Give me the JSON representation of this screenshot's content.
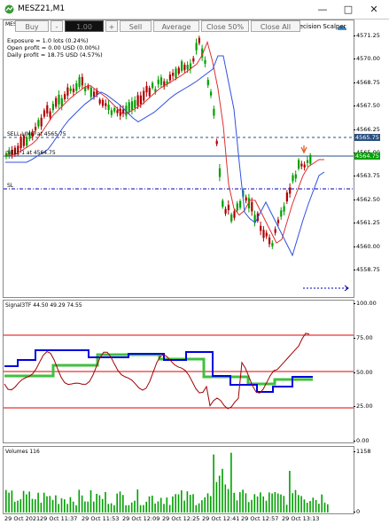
{
  "window": {
    "title": "MESZ21,M1"
  },
  "toolbar": {
    "buy": "Buy",
    "minus": "-",
    "lots": "1.00",
    "plus": "+",
    "sell": "Sell",
    "average": "Average",
    "close50": "Close 50%",
    "closeall": "Close All"
  },
  "info": {
    "exposure": "Exposure = 1.0 lots (0.24%)",
    "open_profit": "Open profit = 0.00 USD (0.00%)",
    "daily_profit": "Daily profit = 18.75 USD (4.57%)"
  },
  "price_chart": {
    "symbol_short": "MES",
    "expert": "recision Scalper",
    "sell_limit_label": "SELL LIMIT  at 4565.75",
    "sell_label": "SELL 1 at 4564.75",
    "sl_label": "SL",
    "current_price": "4564.75",
    "y_ticks": [
      "4571.25",
      "4570.00",
      "4568.75",
      "4567.50",
      "4566.25",
      "4565.00",
      "4563.75",
      "4562.50",
      "4561.25",
      "4560.00",
      "4558.75"
    ],
    "colors": {
      "up": "#00a000",
      "down": "#b00000",
      "ma_red": "#e03030",
      "ma_blue": "#3050e0",
      "current": "#00a000",
      "sell": "#2a5080",
      "sl": "#0000b0"
    }
  },
  "signal_panel": {
    "title": "Signal3TF 44.50 49.29 74.55",
    "y_ticks": [
      "100.00",
      "75.00",
      "50.00",
      "25.00",
      "0.00"
    ],
    "colors": {
      "blue": "#0000e0",
      "green": "#40c040",
      "dark_red": "#a00000",
      "levels": "#e00000"
    }
  },
  "volume_panel": {
    "title": "Volumes 116",
    "y_ticks": [
      "1158",
      "0"
    ],
    "color": "#00a000"
  },
  "x_axis": {
    "ticks": [
      "29 Oct 2021",
      "29 Oct 11:37",
      "29 Oct 11:53",
      "29 Oct 12:09",
      "29 Oct 12:25",
      "29 Oct 12:41",
      "29 Oct 12:57",
      "29 Oct 13:13"
    ]
  }
}
